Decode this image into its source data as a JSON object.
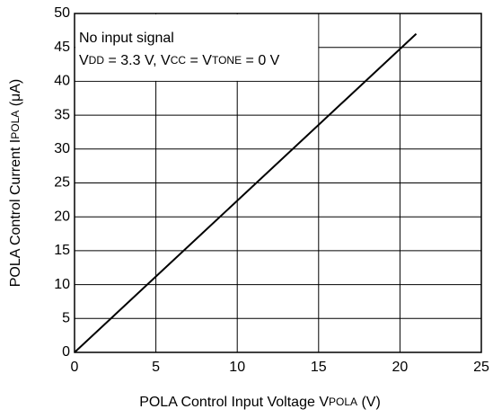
{
  "chart_data": {
    "type": "line",
    "x": [
      0,
      21
    ],
    "series": [
      {
        "name": null,
        "color": "#000000",
        "values": [
          0,
          47
        ]
      }
    ],
    "xlim": [
      0,
      25
    ],
    "xticks": [
      0,
      5,
      10,
      15,
      20,
      25
    ],
    "ylim": [
      0,
      50
    ],
    "yticks": [
      0,
      5,
      10,
      15,
      20,
      25,
      30,
      35,
      40,
      45,
      50
    ],
    "grid": true,
    "x_label": [
      "POLA Control Input Voltage  V",
      "POLA",
      " (V)"
    ],
    "y_label": [
      "POLA Control Current  I",
      "POLA",
      " (μA)"
    ],
    "annotation": {
      "line1": "No input signal",
      "line2": [
        "V",
        "DD",
        " = 3.3 V, V",
        "CC",
        " = V",
        "TONE",
        " = 0 V"
      ]
    }
  }
}
